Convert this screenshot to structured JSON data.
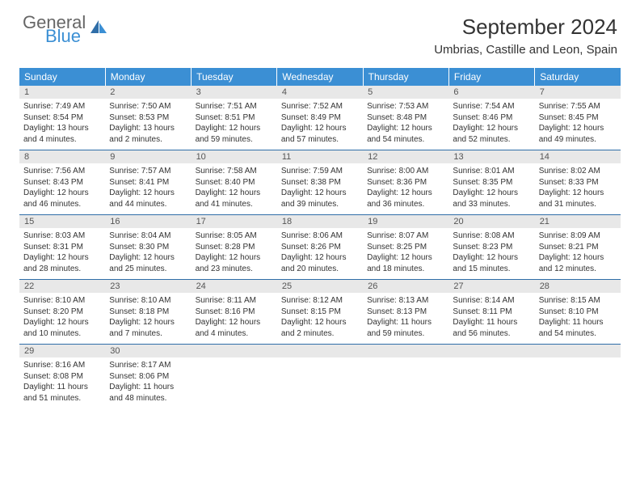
{
  "brand": {
    "line1": "General",
    "line2": "Blue"
  },
  "title": "September 2024",
  "location": "Umbrias, Castille and Leon, Spain",
  "colors": {
    "header_bg": "#3b8fd4",
    "rule": "#2f6ea8",
    "daynum_bg": "#e8e8e8"
  },
  "weekdays": [
    "Sunday",
    "Monday",
    "Tuesday",
    "Wednesday",
    "Thursday",
    "Friday",
    "Saturday"
  ],
  "weeks": [
    [
      {
        "n": "1",
        "sr": "7:49 AM",
        "ss": "8:54 PM",
        "dl": "13 hours and 4 minutes."
      },
      {
        "n": "2",
        "sr": "7:50 AM",
        "ss": "8:53 PM",
        "dl": "13 hours and 2 minutes."
      },
      {
        "n": "3",
        "sr": "7:51 AM",
        "ss": "8:51 PM",
        "dl": "12 hours and 59 minutes."
      },
      {
        "n": "4",
        "sr": "7:52 AM",
        "ss": "8:49 PM",
        "dl": "12 hours and 57 minutes."
      },
      {
        "n": "5",
        "sr": "7:53 AM",
        "ss": "8:48 PM",
        "dl": "12 hours and 54 minutes."
      },
      {
        "n": "6",
        "sr": "7:54 AM",
        "ss": "8:46 PM",
        "dl": "12 hours and 52 minutes."
      },
      {
        "n": "7",
        "sr": "7:55 AM",
        "ss": "8:45 PM",
        "dl": "12 hours and 49 minutes."
      }
    ],
    [
      {
        "n": "8",
        "sr": "7:56 AM",
        "ss": "8:43 PM",
        "dl": "12 hours and 46 minutes."
      },
      {
        "n": "9",
        "sr": "7:57 AM",
        "ss": "8:41 PM",
        "dl": "12 hours and 44 minutes."
      },
      {
        "n": "10",
        "sr": "7:58 AM",
        "ss": "8:40 PM",
        "dl": "12 hours and 41 minutes."
      },
      {
        "n": "11",
        "sr": "7:59 AM",
        "ss": "8:38 PM",
        "dl": "12 hours and 39 minutes."
      },
      {
        "n": "12",
        "sr": "8:00 AM",
        "ss": "8:36 PM",
        "dl": "12 hours and 36 minutes."
      },
      {
        "n": "13",
        "sr": "8:01 AM",
        "ss": "8:35 PM",
        "dl": "12 hours and 33 minutes."
      },
      {
        "n": "14",
        "sr": "8:02 AM",
        "ss": "8:33 PM",
        "dl": "12 hours and 31 minutes."
      }
    ],
    [
      {
        "n": "15",
        "sr": "8:03 AM",
        "ss": "8:31 PM",
        "dl": "12 hours and 28 minutes."
      },
      {
        "n": "16",
        "sr": "8:04 AM",
        "ss": "8:30 PM",
        "dl": "12 hours and 25 minutes."
      },
      {
        "n": "17",
        "sr": "8:05 AM",
        "ss": "8:28 PM",
        "dl": "12 hours and 23 minutes."
      },
      {
        "n": "18",
        "sr": "8:06 AM",
        "ss": "8:26 PM",
        "dl": "12 hours and 20 minutes."
      },
      {
        "n": "19",
        "sr": "8:07 AM",
        "ss": "8:25 PM",
        "dl": "12 hours and 18 minutes."
      },
      {
        "n": "20",
        "sr": "8:08 AM",
        "ss": "8:23 PM",
        "dl": "12 hours and 15 minutes."
      },
      {
        "n": "21",
        "sr": "8:09 AM",
        "ss": "8:21 PM",
        "dl": "12 hours and 12 minutes."
      }
    ],
    [
      {
        "n": "22",
        "sr": "8:10 AM",
        "ss": "8:20 PM",
        "dl": "12 hours and 10 minutes."
      },
      {
        "n": "23",
        "sr": "8:10 AM",
        "ss": "8:18 PM",
        "dl": "12 hours and 7 minutes."
      },
      {
        "n": "24",
        "sr": "8:11 AM",
        "ss": "8:16 PM",
        "dl": "12 hours and 4 minutes."
      },
      {
        "n": "25",
        "sr": "8:12 AM",
        "ss": "8:15 PM",
        "dl": "12 hours and 2 minutes."
      },
      {
        "n": "26",
        "sr": "8:13 AM",
        "ss": "8:13 PM",
        "dl": "11 hours and 59 minutes."
      },
      {
        "n": "27",
        "sr": "8:14 AM",
        "ss": "8:11 PM",
        "dl": "11 hours and 56 minutes."
      },
      {
        "n": "28",
        "sr": "8:15 AM",
        "ss": "8:10 PM",
        "dl": "11 hours and 54 minutes."
      }
    ],
    [
      {
        "n": "29",
        "sr": "8:16 AM",
        "ss": "8:08 PM",
        "dl": "11 hours and 51 minutes."
      },
      {
        "n": "30",
        "sr": "8:17 AM",
        "ss": "8:06 PM",
        "dl": "11 hours and 48 minutes."
      },
      null,
      null,
      null,
      null,
      null
    ]
  ],
  "labels": {
    "sunrise": "Sunrise: ",
    "sunset": "Sunset: ",
    "daylight": "Daylight: "
  }
}
